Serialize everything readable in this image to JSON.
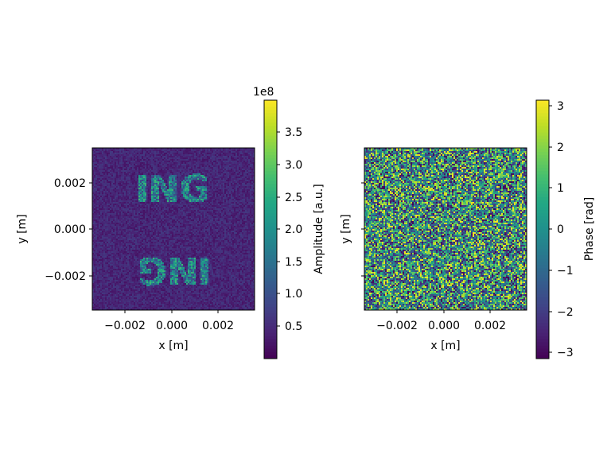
{
  "chart_data": [
    {
      "type": "heatmap",
      "title": "",
      "xlabel": "x [m]",
      "ylabel": "y [m]",
      "xlim": [
        -0.0035,
        0.0035
      ],
      "ylim": [
        -0.0035,
        0.0035
      ],
      "xticks": [
        "−0.002",
        "0.000",
        "0.002"
      ],
      "yticks": [
        "0.002",
        "0.000",
        "−0.002"
      ],
      "colorbar": {
        "label": "Amplitude [a.u.]",
        "offset_label": "1e8",
        "range": [
          0.0,
          4.0
        ],
        "ticks": [
          "0.5",
          "1.0",
          "1.5",
          "2.0",
          "2.5",
          "3.0",
          "3.5"
        ],
        "colormap": "viridis"
      },
      "content": "speckled amplitude image with text 'ING' upper and mirrored 'ING' lower on dark background",
      "grid": false
    },
    {
      "type": "heatmap",
      "title": "",
      "xlabel": "x [m]",
      "ylabel": "y [m]",
      "xlim": [
        -0.0035,
        0.0035
      ],
      "ylim": [
        -0.0035,
        0.0035
      ],
      "xticks": [
        "−0.002",
        "0.000",
        "0.002"
      ],
      "yticks": [],
      "colorbar": {
        "label": "Phase [rad]",
        "range": [
          -3.14159,
          3.14159
        ],
        "ticks": [
          "3",
          "2",
          "1",
          "0",
          "−1",
          "−2",
          "−3"
        ],
        "colormap": "viridis"
      },
      "content": "uniform random phase noise",
      "grid": false
    }
  ]
}
